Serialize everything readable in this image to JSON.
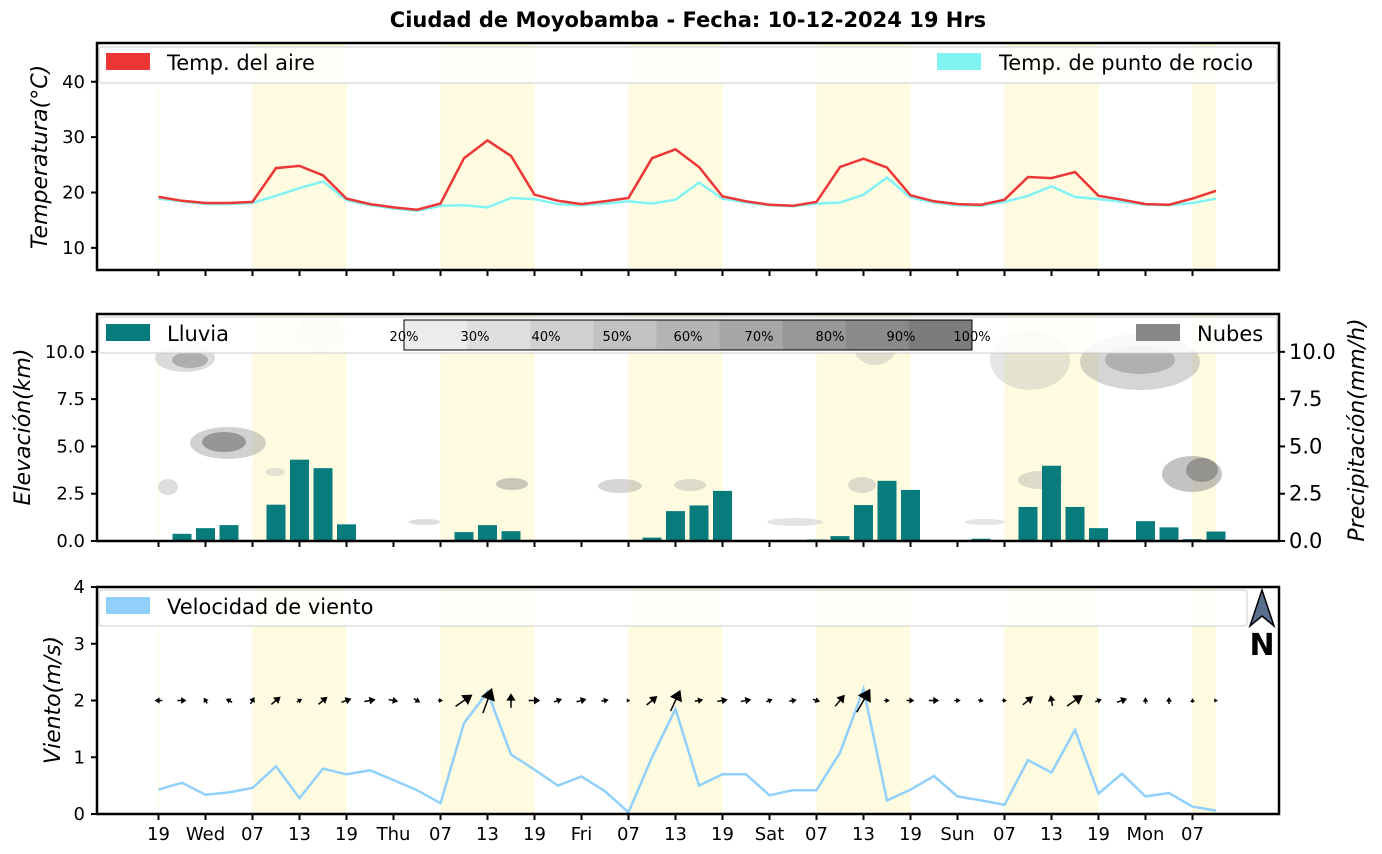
{
  "title": "Ciudad de Moyobamba   -   Fecha: 10-12-2024 19 Hrs",
  "colors": {
    "air_temp": "#ee3636",
    "dew_point": "#82f3f3",
    "rain": "#087c7c",
    "clouds": "#888888",
    "wind": "#90d0fa",
    "day_band": "#fffbe0"
  },
  "x_axis": {
    "tick_labels": [
      "19",
      "Wed",
      "07",
      "13",
      "19",
      "Thu",
      "07",
      "13",
      "19",
      "Fri",
      "07",
      "13",
      "19",
      "Sat",
      "07",
      "13",
      "19",
      "Sun",
      "07",
      "13",
      "19",
      "Mon",
      "07"
    ]
  },
  "compass": {
    "letter": "N",
    "icon": "north-arrow-icon"
  },
  "cloud_colorbar": {
    "labels": [
      "20%",
      "30%",
      "40%",
      "50%",
      "60%",
      "70%",
      "80%",
      "90%",
      "100%"
    ]
  },
  "chart_data": [
    {
      "type": "line",
      "panel": "temperature",
      "ylabel": "Temperatura(°C)",
      "ylim": [
        6,
        47
      ],
      "yticks": [
        "10",
        "20",
        "30",
        "40"
      ],
      "time_step_hours": 3,
      "series": [
        {
          "name": "Temp. del aire",
          "color": "#ee3636",
          "values": [
            19.2,
            18.5,
            18.1,
            18.1,
            18.3,
            24.4,
            24.8,
            23.1,
            18.9,
            17.9,
            17.3,
            16.9,
            18.0,
            26.2,
            29.4,
            26.6,
            19.6,
            18.5,
            17.9,
            18.4,
            19.0,
            26.2,
            27.8,
            24.6,
            19.3,
            18.4,
            17.8,
            17.6,
            18.3,
            24.6,
            26.1,
            24.5,
            19.5,
            18.4,
            17.9,
            17.8,
            18.7,
            22.8,
            22.6,
            23.7,
            19.4,
            18.7,
            17.9,
            17.8,
            18.9,
            20.3
          ]
        },
        {
          "name": "Temp. de punto de rocio",
          "color": "#82f3f3",
          "values": [
            18.9,
            18.4,
            17.9,
            17.9,
            18.1,
            19.4,
            20.8,
            22.0,
            18.6,
            17.7,
            17.1,
            16.7,
            17.6,
            17.7,
            17.3,
            19.0,
            18.8,
            17.9,
            17.7,
            18.0,
            18.4,
            18.0,
            18.7,
            21.8,
            18.9,
            18.2,
            17.7,
            17.5,
            18.0,
            18.2,
            19.6,
            22.7,
            19.1,
            18.2,
            17.7,
            17.6,
            18.3,
            19.4,
            21.1,
            19.2,
            18.8,
            18.3,
            17.8,
            17.7,
            18.1,
            18.9
          ]
        }
      ]
    },
    {
      "type": "bar",
      "panel": "precipitation",
      "ylabel": "Elevación(km)",
      "ylabel_right": "Precipitación(mm/h)",
      "ylim": [
        0,
        12
      ],
      "yticks": [
        "0.0",
        "2.5",
        "5.0",
        "7.5",
        "10.0"
      ],
      "series": [
        {
          "name": "Lluvia",
          "color": "#087c7c",
          "values": [
            0,
            0.38,
            0.68,
            0.84,
            0.05,
            1.92,
            4.3,
            3.85,
            0.88,
            0,
            0,
            0,
            0,
            0.47,
            0.84,
            0.52,
            0,
            0,
            0,
            0,
            0.05,
            0.18,
            1.58,
            1.88,
            2.65,
            0,
            0,
            0.04,
            0.08,
            0.26,
            1.9,
            3.18,
            2.7,
            0.04,
            0,
            0.12,
            0.02,
            1.8,
            3.98,
            1.8,
            0.68,
            0.04,
            1.05,
            0.72,
            0.1,
            0.5
          ]
        },
        {
          "name": "Nubes",
          "color": "#888888",
          "kind": "cloud cover contours"
        }
      ]
    },
    {
      "type": "line",
      "panel": "wind",
      "ylabel": "Viento(m/s)",
      "ylim": [
        0,
        4
      ],
      "yticks": [
        "0",
        "1",
        "2",
        "3",
        "4"
      ],
      "series": [
        {
          "name": "Velocidad de viento",
          "color": "#90d0fa",
          "values": [
            0.43,
            0.55,
            0.34,
            0.38,
            0.46,
            0.84,
            0.28,
            0.8,
            0.7,
            0.77,
            0.6,
            0.42,
            0.19,
            1.6,
            2.15,
            1.05,
            0.78,
            0.5,
            0.66,
            0.4,
            0.03,
            1.0,
            1.85,
            0.5,
            0.7,
            0.7,
            0.33,
            0.42,
            0.42,
            1.08,
            2.2,
            0.24,
            0.43,
            0.67,
            0.31,
            0.24,
            0.16,
            0.95,
            0.73,
            1.48,
            0.36,
            0.71,
            0.31,
            0.37,
            0.13,
            0.06
          ]
        }
      ],
      "wind_arrows_at": 2,
      "wind_arrow_angles_deg": [
        180,
        0,
        -120,
        -150,
        -60,
        -40,
        -30,
        -40,
        -20,
        -10,
        10,
        30,
        0,
        -35,
        -70,
        -90,
        0,
        -20,
        -15,
        -10,
        0,
        -40,
        -65,
        -10,
        -10,
        -10,
        -20,
        -10,
        20,
        -50,
        -60,
        0,
        0,
        0,
        0,
        10,
        0,
        -40,
        -100,
        -35,
        -20,
        -20,
        -90,
        -90,
        -90,
        0
      ]
    }
  ],
  "legends": {
    "temp_left": "Temp. del aire",
    "temp_right": "Temp. de punto de rocio",
    "precip_left": "Lluvia",
    "precip_right": "Nubes",
    "wind_left": "Velocidad de viento"
  }
}
